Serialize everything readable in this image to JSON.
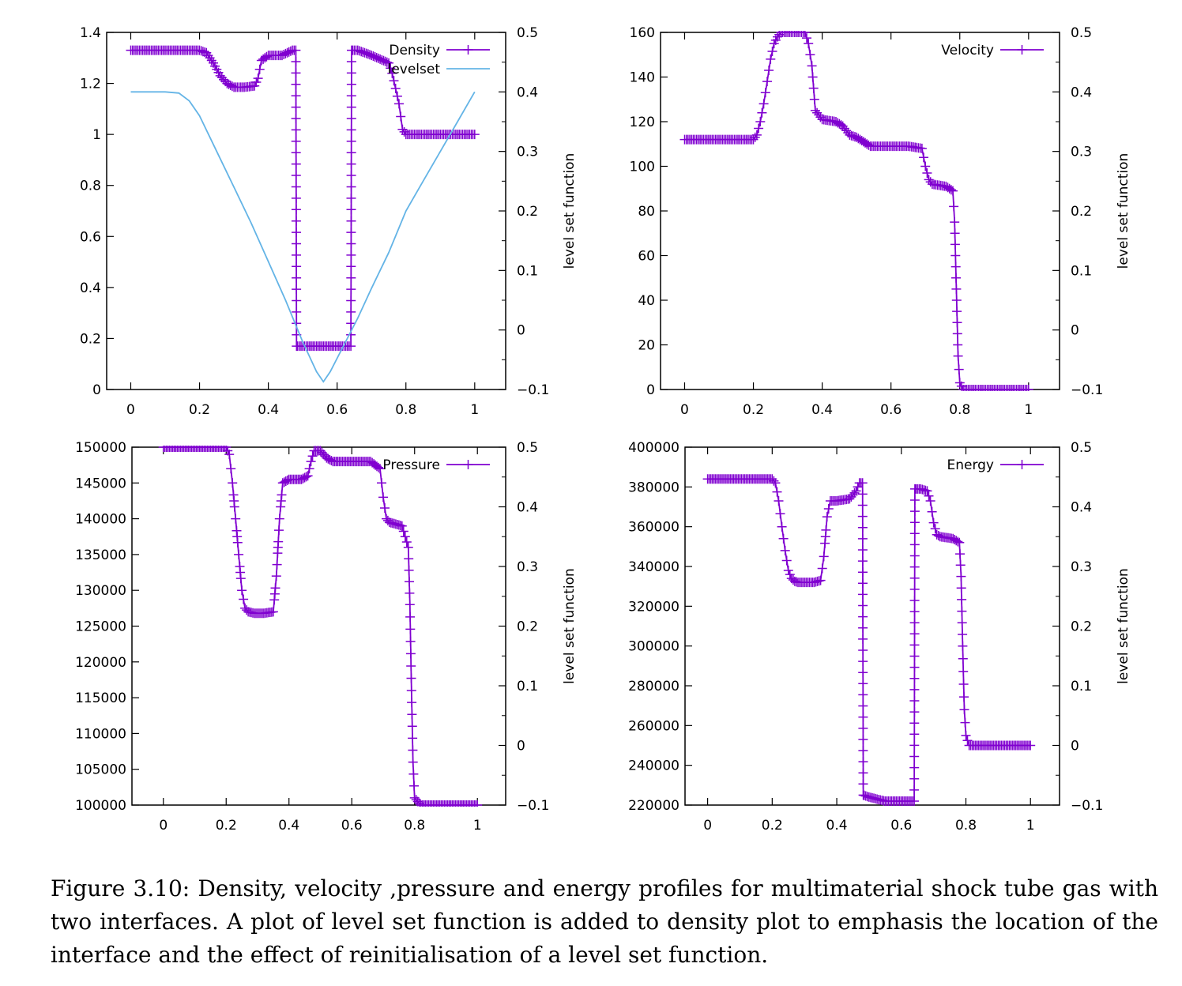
{
  "caption": "Figure 3.10: Density, velocity ,pressure and energy profiles for multimaterial shock tube gas with two interfaces. A plot of level set function is added to density plot to emphasis the location of the interface and the effect of reinitialisation of a level set function.",
  "colors": {
    "main_series": "#8000d0",
    "levelset_series": "#64b4e6",
    "axes": "#000000"
  },
  "chart_data": [
    {
      "type": "line",
      "ylim": [
        0,
        1.4
      ],
      "xlim": [
        -0.07,
        1.09
      ],
      "y2lim": [
        -0.1,
        0.5
      ],
      "y2label": "level set function",
      "x_ticks": [
        "0",
        "0.2",
        "0.4",
        "0.6",
        "0.8",
        "1"
      ],
      "y_ticks": [
        "0",
        "0.2",
        "0.4",
        "0.6",
        "0.8",
        "1",
        "1.2",
        "1.4"
      ],
      "y2_ticks": [
        "−0.1",
        "0",
        "0.1",
        "0.2",
        "0.3",
        "0.4",
        "0.5"
      ],
      "legend_position": "top-right",
      "series": [
        {
          "name": "Density",
          "marker": "plus",
          "x": [
            0,
            0.05,
            0.1,
            0.15,
            0.2,
            0.22,
            0.24,
            0.26,
            0.28,
            0.3,
            0.33,
            0.36,
            0.37,
            0.38,
            0.4,
            0.44,
            0.47,
            0.48,
            0.482,
            0.5,
            0.55,
            0.6,
            0.64,
            0.642,
            0.66,
            0.7,
            0.75,
            0.76,
            0.78,
            0.79,
            0.8,
            0.85,
            0.9,
            0.95,
            1
          ],
          "y": [
            1.33,
            1.33,
            1.33,
            1.33,
            1.33,
            1.32,
            1.28,
            1.23,
            1.2,
            1.185,
            1.185,
            1.19,
            1.22,
            1.29,
            1.31,
            1.31,
            1.33,
            1.33,
            0.17,
            0.17,
            0.17,
            0.17,
            0.17,
            1.33,
            1.33,
            1.31,
            1.28,
            1.24,
            1.12,
            1.02,
            1.0,
            1.0,
            1.0,
            1.0,
            1.0
          ]
        },
        {
          "name": "levelset",
          "axis": "y2",
          "x": [
            0,
            0.05,
            0.1,
            0.14,
            0.17,
            0.2,
            0.25,
            0.3,
            0.35,
            0.4,
            0.45,
            0.5,
            0.54,
            0.56,
            0.58,
            0.62,
            0.66,
            0.7,
            0.75,
            0.8,
            0.85,
            0.9,
            0.95,
            1
          ],
          "y": [
            0.4,
            0.4,
            0.4,
            0.398,
            0.385,
            0.36,
            0.3,
            0.24,
            0.18,
            0.115,
            0.05,
            -0.02,
            -0.07,
            -0.087,
            -0.07,
            -0.025,
            0.02,
            0.07,
            0.13,
            0.2,
            0.25,
            0.3,
            0.35,
            0.4
          ]
        }
      ]
    },
    {
      "type": "line",
      "ylim": [
        0,
        160
      ],
      "xlim": [
        -0.07,
        1.09
      ],
      "y2lim": [
        -0.1,
        0.5
      ],
      "y2label": "level set function",
      "x_ticks": [
        "0",
        "0.2",
        "0.4",
        "0.6",
        "0.8",
        "1"
      ],
      "y_ticks": [
        "0",
        "20",
        "40",
        "60",
        "80",
        "100",
        "120",
        "140",
        "160"
      ],
      "y2_ticks": [
        "−0.1",
        "0",
        "0.1",
        "0.2",
        "0.3",
        "0.4",
        "0.5"
      ],
      "legend_position": "top-right",
      "series": [
        {
          "name": "Velocity",
          "marker": "plus",
          "x": [
            0,
            0.05,
            0.1,
            0.15,
            0.2,
            0.21,
            0.22,
            0.23,
            0.24,
            0.25,
            0.26,
            0.27,
            0.28,
            0.3,
            0.33,
            0.35,
            0.36,
            0.37,
            0.38,
            0.4,
            0.44,
            0.46,
            0.48,
            0.5,
            0.52,
            0.54,
            0.6,
            0.65,
            0.69,
            0.7,
            0.71,
            0.72,
            0.76,
            0.78,
            0.785,
            0.79,
            0.795,
            0.8,
            0.81,
            0.85,
            0.9,
            0.95,
            1
          ],
          "y": [
            112,
            112,
            112,
            112,
            112,
            114,
            120,
            128,
            138,
            148,
            155,
            158,
            160,
            160,
            160,
            160,
            155,
            145,
            125,
            121,
            120,
            118,
            114,
            113,
            111,
            109,
            109,
            109,
            108,
            100,
            94,
            92,
            91,
            89,
            75,
            45,
            15,
            3,
            0,
            0,
            0,
            0,
            0
          ]
        }
      ]
    },
    {
      "type": "line",
      "ylim": [
        100000,
        150000
      ],
      "xlim": [
        -0.1,
        1.09
      ],
      "y2lim": [
        -0.1,
        0.5
      ],
      "y2label": "level set function",
      "x_ticks": [
        "0",
        "0.2",
        "0.4",
        "0.6",
        "0.8",
        "1"
      ],
      "y_ticks": [
        "100000",
        "105000",
        "110000",
        "115000",
        "120000",
        "125000",
        "130000",
        "135000",
        "140000",
        "145000",
        "150000"
      ],
      "y2_ticks": [
        "−0.1",
        "0",
        "0.1",
        "0.2",
        "0.3",
        "0.4",
        "0.5"
      ],
      "legend_position": "top-right",
      "series": [
        {
          "name": "Pressure",
          "marker": "plus",
          "x": [
            0,
            0.05,
            0.1,
            0.15,
            0.2,
            0.21,
            0.22,
            0.23,
            0.24,
            0.25,
            0.26,
            0.27,
            0.29,
            0.32,
            0.35,
            0.36,
            0.37,
            0.38,
            0.4,
            0.44,
            0.46,
            0.47,
            0.48,
            0.5,
            0.52,
            0.54,
            0.58,
            0.62,
            0.66,
            0.69,
            0.7,
            0.71,
            0.72,
            0.76,
            0.78,
            0.785,
            0.79,
            0.795,
            0.8,
            0.82,
            0.85,
            0.9,
            0.95,
            1
          ],
          "y": [
            150000,
            150000,
            150000,
            150000,
            150000,
            149000,
            145000,
            140000,
            135000,
            130000,
            127500,
            127000,
            126800,
            126800,
            127000,
            132000,
            140000,
            145000,
            145500,
            145500,
            146000,
            148000,
            149500,
            149500,
            148500,
            148000,
            148000,
            148000,
            148000,
            147000,
            143000,
            140000,
            139500,
            139000,
            136000,
            128000,
            116000,
            106000,
            101000,
            100000,
            100000,
            100000,
            100000,
            100000
          ]
        }
      ]
    },
    {
      "type": "line",
      "ylim": [
        220000,
        400000
      ],
      "xlim": [
        -0.07,
        1.09
      ],
      "y2lim": [
        -0.1,
        0.5
      ],
      "y2label": "level set function",
      "x_ticks": [
        "0",
        "0.2",
        "0.4",
        "0.6",
        "0.8",
        "1"
      ],
      "y_ticks": [
        "220000",
        "240000",
        "260000",
        "280000",
        "300000",
        "320000",
        "340000",
        "360000",
        "380000",
        "400000"
      ],
      "y2_ticks": [
        "−0.1",
        "0",
        "0.1",
        "0.2",
        "0.3",
        "0.4",
        "0.5"
      ],
      "legend_position": "top-right",
      "series": [
        {
          "name": "Energy",
          "marker": "plus",
          "x": [
            0,
            0.05,
            0.1,
            0.15,
            0.2,
            0.21,
            0.22,
            0.23,
            0.24,
            0.25,
            0.26,
            0.27,
            0.28,
            0.3,
            0.33,
            0.35,
            0.36,
            0.37,
            0.38,
            0.4,
            0.44,
            0.46,
            0.47,
            0.48,
            0.482,
            0.5,
            0.55,
            0.6,
            0.64,
            0.642,
            0.66,
            0.68,
            0.69,
            0.7,
            0.71,
            0.72,
            0.76,
            0.78,
            0.785,
            0.79,
            0.795,
            0.8,
            0.81,
            0.85,
            0.9,
            0.95,
            1
          ],
          "y": [
            384000,
            384000,
            384000,
            384000,
            384000,
            382000,
            373000,
            360000,
            348000,
            338000,
            334000,
            332500,
            332000,
            332000,
            332000,
            333000,
            345000,
            365000,
            373000,
            373000,
            374000,
            378000,
            382000,
            382000,
            225000,
            224000,
            222000,
            222000,
            222000,
            379000,
            379000,
            378000,
            373000,
            362000,
            356000,
            355000,
            354000,
            352000,
            335000,
            300000,
            268000,
            255000,
            250000,
            250000,
            250000,
            250000,
            250000
          ]
        }
      ]
    }
  ]
}
